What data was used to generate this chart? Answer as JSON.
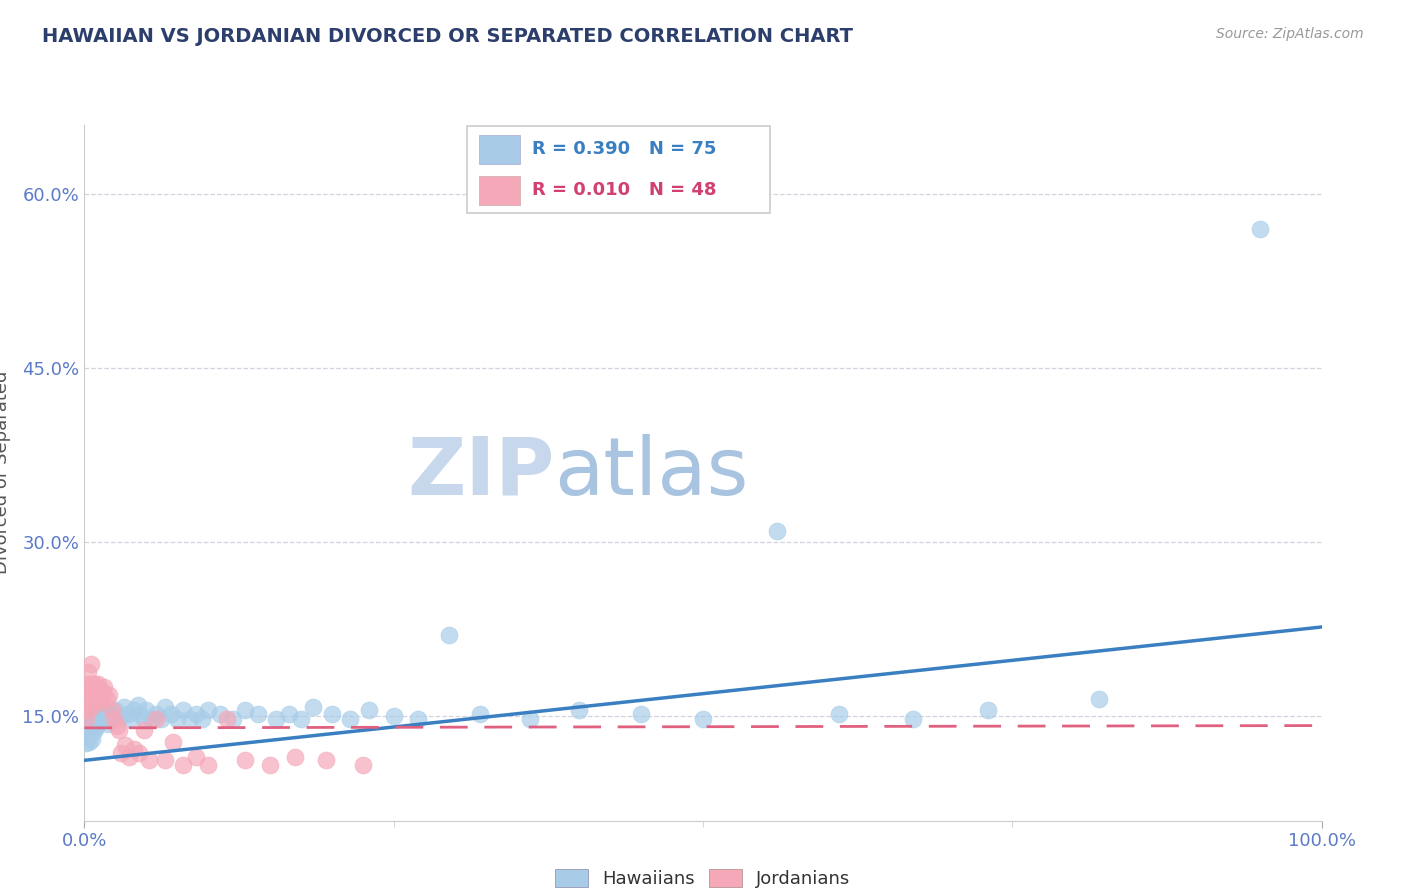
{
  "title": "HAWAIIAN VS JORDANIAN DIVORCED OR SEPARATED CORRELATION CHART",
  "source": "Source: ZipAtlas.com",
  "ylabel": "Divorced or Separated",
  "legend_hawaiians": "Hawaiians",
  "legend_jordanians": "Jordanians",
  "hawaiian_R": "0.390",
  "hawaiian_N": "75",
  "jordanian_R": "0.010",
  "jordanian_N": "48",
  "blue_color": "#a8cce8",
  "blue_line_color": "#3a7fc1",
  "pink_color": "#f4a8b8",
  "pink_line_color": "#e06080",
  "grid_color": "#c8c8d8",
  "title_color": "#2c3e6b",
  "axis_tick_color": "#5b7bc8",
  "watermark_zip_color": "#c8d8ec",
  "watermark_atlas_color": "#a8c4e0",
  "ymin": 0.06,
  "ymax": 0.66,
  "ytick_vals": [
    0.15,
    0.3,
    0.45,
    0.6
  ],
  "ytick_labels": [
    "15.0%",
    "30.0%",
    "45.0%",
    "60.0%"
  ],
  "hawaiian_x": [
    0.001,
    0.002,
    0.003,
    0.003,
    0.004,
    0.004,
    0.005,
    0.005,
    0.006,
    0.007,
    0.007,
    0.008,
    0.009,
    0.01,
    0.01,
    0.011,
    0.012,
    0.012,
    0.013,
    0.014,
    0.015,
    0.016,
    0.017,
    0.018,
    0.019,
    0.02,
    0.022,
    0.023,
    0.025,
    0.027,
    0.03,
    0.032,
    0.035,
    0.037,
    0.04,
    0.043,
    0.045,
    0.048,
    0.05,
    0.055,
    0.058,
    0.062,
    0.065,
    0.07,
    0.075,
    0.08,
    0.085,
    0.09,
    0.095,
    0.1,
    0.11,
    0.12,
    0.13,
    0.14,
    0.155,
    0.165,
    0.175,
    0.185,
    0.2,
    0.215,
    0.23,
    0.25,
    0.27,
    0.295,
    0.32,
    0.36,
    0.4,
    0.45,
    0.5,
    0.56,
    0.61,
    0.67,
    0.73,
    0.82,
    0.95
  ],
  "hawaiian_y": [
    0.127,
    0.132,
    0.135,
    0.14,
    0.128,
    0.142,
    0.138,
    0.145,
    0.13,
    0.143,
    0.148,
    0.137,
    0.14,
    0.142,
    0.15,
    0.145,
    0.148,
    0.153,
    0.147,
    0.152,
    0.148,
    0.152,
    0.15,
    0.155,
    0.143,
    0.15,
    0.152,
    0.148,
    0.155,
    0.148,
    0.15,
    0.158,
    0.152,
    0.148,
    0.155,
    0.16,
    0.152,
    0.148,
    0.155,
    0.148,
    0.152,
    0.148,
    0.158,
    0.152,
    0.148,
    0.155,
    0.148,
    0.152,
    0.148,
    0.155,
    0.152,
    0.148,
    0.155,
    0.152,
    0.148,
    0.152,
    0.148,
    0.158,
    0.152,
    0.148,
    0.155,
    0.15,
    0.148,
    0.22,
    0.152,
    0.148,
    0.155,
    0.152,
    0.148,
    0.31,
    0.152,
    0.148,
    0.155,
    0.165,
    0.57
  ],
  "jordanian_x": [
    0.001,
    0.002,
    0.002,
    0.003,
    0.003,
    0.004,
    0.004,
    0.005,
    0.005,
    0.006,
    0.006,
    0.007,
    0.007,
    0.008,
    0.008,
    0.009,
    0.01,
    0.011,
    0.012,
    0.013,
    0.014,
    0.015,
    0.016,
    0.018,
    0.02,
    0.022,
    0.024,
    0.026,
    0.028,
    0.03,
    0.033,
    0.036,
    0.04,
    0.044,
    0.048,
    0.052,
    0.058,
    0.065,
    0.072,
    0.08,
    0.09,
    0.1,
    0.115,
    0.13,
    0.15,
    0.17,
    0.195,
    0.225
  ],
  "jordanian_y": [
    0.148,
    0.155,
    0.165,
    0.178,
    0.188,
    0.16,
    0.175,
    0.168,
    0.195,
    0.172,
    0.158,
    0.178,
    0.168,
    0.162,
    0.178,
    0.165,
    0.168,
    0.178,
    0.165,
    0.162,
    0.172,
    0.168,
    0.175,
    0.165,
    0.168,
    0.155,
    0.148,
    0.142,
    0.138,
    0.118,
    0.125,
    0.115,
    0.122,
    0.118,
    0.138,
    0.112,
    0.148,
    0.112,
    0.128,
    0.108,
    0.115,
    0.108,
    0.148,
    0.112,
    0.108,
    0.115,
    0.112,
    0.108
  ],
  "background_color": "#ffffff"
}
